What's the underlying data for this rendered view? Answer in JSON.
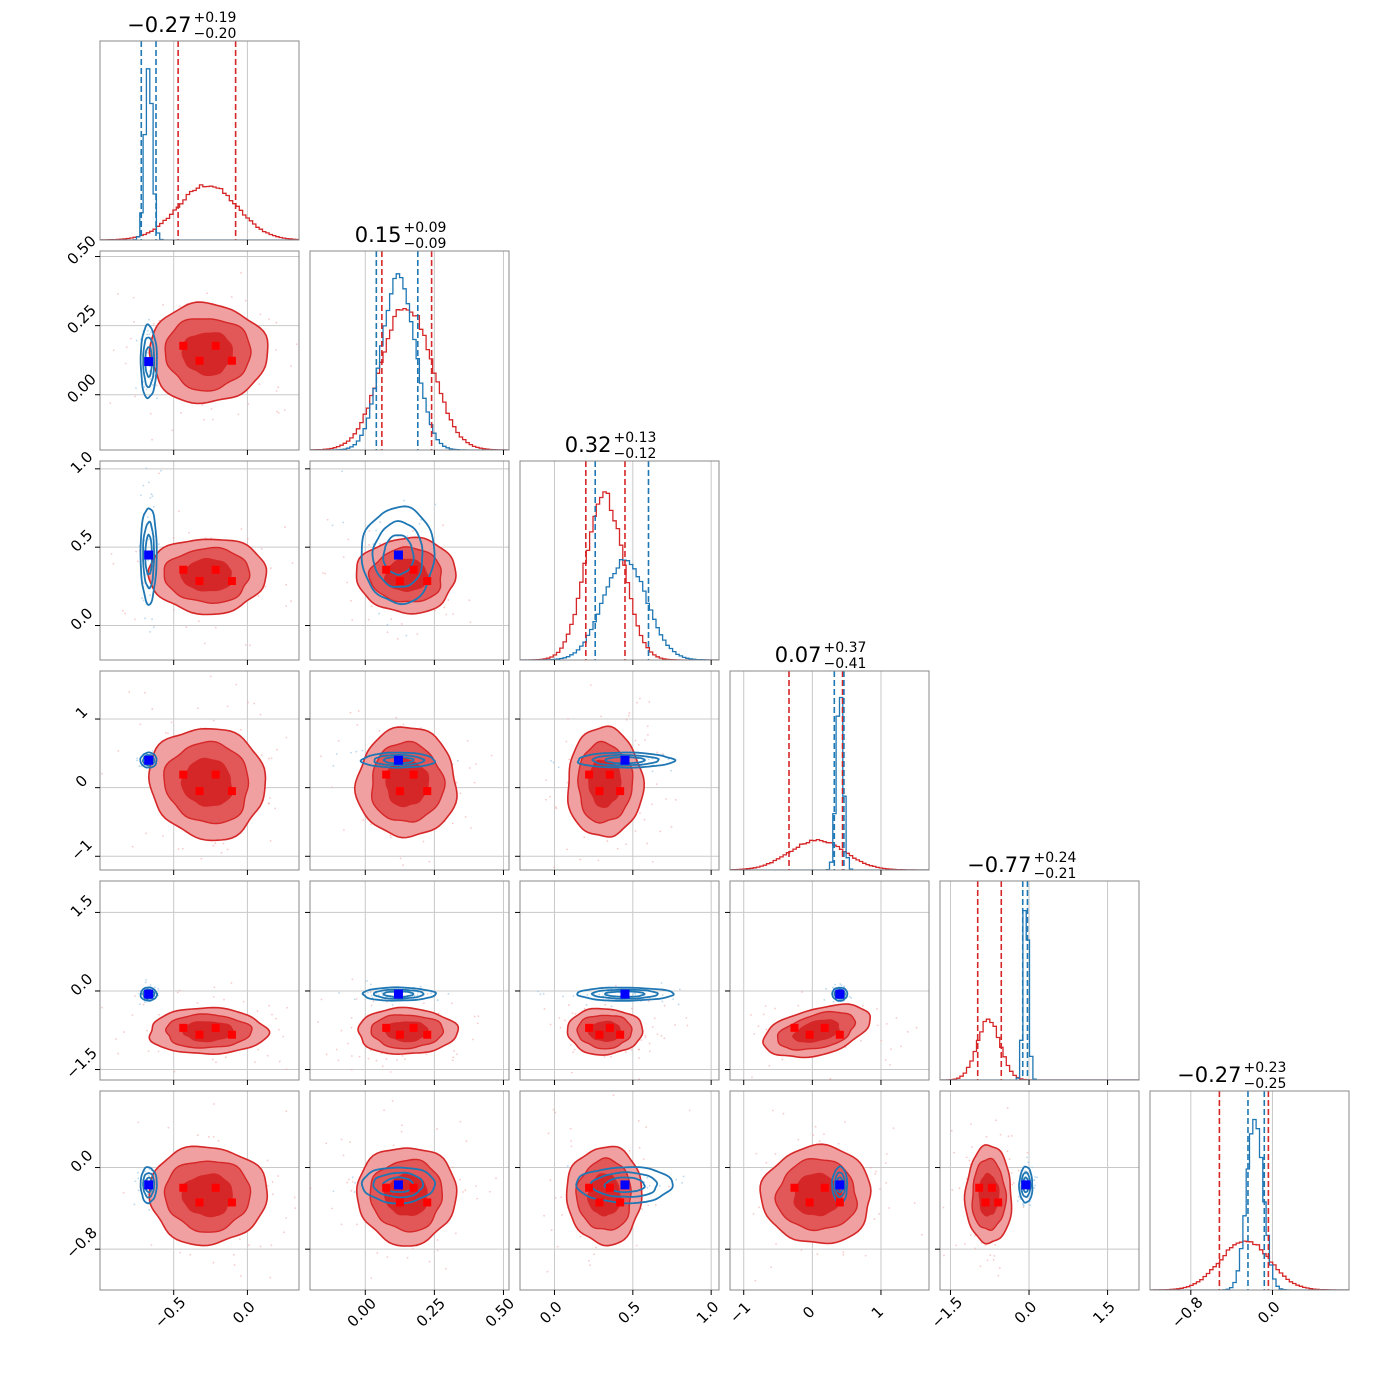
{
  "chart_data": {
    "type": "corner",
    "colors": {
      "posterior_a": "#d62728",
      "posterior_b": "#1f77b4",
      "marker_blue": "#0000ff",
      "marker_red": "#ff0000",
      "grid": "#c8c8c8"
    },
    "params": [
      {
        "range": [
          -1.0,
          0.35
        ],
        "ticks": [
          -0.5,
          0.0
        ],
        "tick_labels": [
          "−0.5",
          "0.0"
        ],
        "title": {
          "main": "−0.27",
          "plus": "+0.19",
          "minus": "−0.20"
        },
        "red_median": -0.27,
        "red_sigma": 0.2,
        "red_quantiles": [
          -0.47,
          -0.08
        ],
        "blue_median": -0.67,
        "blue_sigma": 0.025,
        "blue_quantiles": [
          -0.72,
          -0.62
        ],
        "truth": -0.67
      },
      {
        "range": [
          -0.2,
          0.52
        ],
        "ticks": [
          0.0,
          0.25,
          0.5
        ],
        "tick_labels": [
          "0.00",
          "0.25",
          "0.50"
        ],
        "title": {
          "main": "0.15",
          "plus": "+0.09",
          "minus": "−0.09"
        },
        "red_median": 0.15,
        "red_sigma": 0.09,
        "red_quantiles": [
          0.06,
          0.24
        ],
        "blue_median": 0.12,
        "blue_sigma": 0.06,
        "blue_quantiles": [
          0.04,
          0.19
        ],
        "truth": 0.12
      },
      {
        "range": [
          -0.22,
          1.05
        ],
        "ticks": [
          0.0,
          0.5,
          1.0
        ],
        "tick_labels": [
          "0.0",
          "0.5",
          "1.0"
        ],
        "title": {
          "main": "0.32",
          "plus": "+0.13",
          "minus": "−0.12"
        },
        "red_median": 0.32,
        "red_sigma": 0.12,
        "red_quantiles": [
          0.2,
          0.45
        ],
        "blue_median": 0.45,
        "blue_sigma": 0.14,
        "blue_quantiles": [
          0.26,
          0.6
        ],
        "truth": 0.45
      },
      {
        "range": [
          -1.2,
          1.7
        ],
        "ticks": [
          -1,
          0,
          1
        ],
        "tick_labels": [
          "−1",
          "0",
          "1"
        ],
        "title": {
          "main": "0.07",
          "plus": "+0.37",
          "minus": "−0.41"
        },
        "red_median": 0.07,
        "red_sigma": 0.4,
        "red_quantiles": [
          -0.34,
          0.44
        ],
        "blue_median": 0.4,
        "blue_sigma": 0.05,
        "blue_quantiles": [
          0.32,
          0.46
        ],
        "truth": 0.4
      },
      {
        "range": [
          -1.7,
          2.1
        ],
        "ticks": [
          -1.5,
          0.0,
          1.5
        ],
        "tick_labels": [
          "−1.5",
          "0.0",
          "1.5"
        ],
        "title": {
          "main": "−0.77",
          "plus": "+0.24",
          "minus": "−0.21"
        },
        "red_median": -0.77,
        "red_sigma": 0.22,
        "red_quantiles": [
          -0.98,
          -0.53
        ],
        "blue_median": -0.06,
        "blue_sigma": 0.05,
        "blue_quantiles": [
          -0.12,
          -0.03
        ],
        "truth": -0.06
      },
      {
        "range": [
          -1.2,
          0.75
        ],
        "ticks": [
          -0.8,
          0.0
        ],
        "tick_labels": [
          "−0.8",
          "0.0"
        ],
        "title": {
          "main": "−0.27",
          "plus": "+0.23",
          "minus": "−0.25"
        },
        "red_median": -0.27,
        "red_sigma": 0.24,
        "red_quantiles": [
          -0.52,
          -0.04
        ],
        "blue_median": -0.17,
        "blue_sigma": 0.08,
        "blue_quantiles": [
          -0.24,
          -0.08
        ],
        "truth": -0.17
      }
    ],
    "grid": true
  }
}
